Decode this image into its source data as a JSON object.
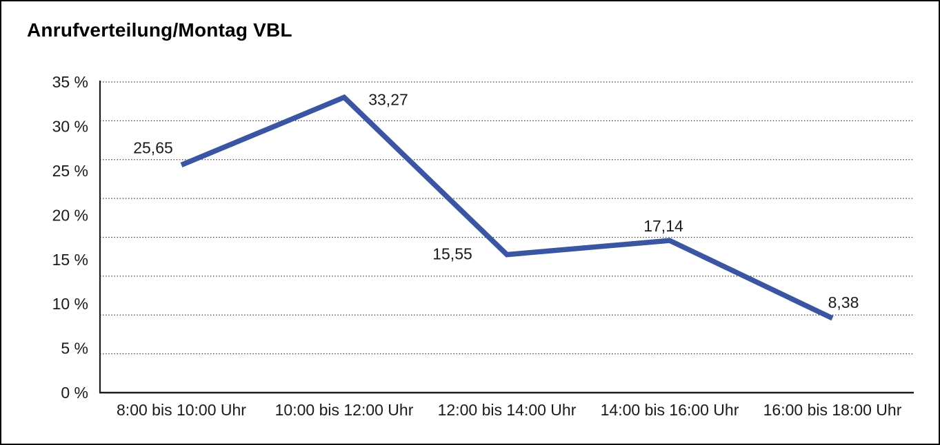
{
  "chart_data": {
    "type": "line",
    "title": "Anrufverteilung/Montag VBL",
    "categories": [
      "8:00 bis 10:00 Uhr",
      "10:00 bis 12:00 Uhr",
      "12:00 bis 14:00 Uhr",
      "14:00 bis 16:00 Uhr",
      "16:00 bis 18:00 Uhr"
    ],
    "values": [
      25.65,
      33.27,
      15.55,
      17.14,
      8.38
    ],
    "value_labels": [
      "25,65",
      "33,27",
      "15,55",
      "17,14",
      "8,38"
    ],
    "y_ticks": [
      "35 %",
      "30 %",
      "25 %",
      "20 %",
      "15 %",
      "10 %",
      "5 %",
      "0 %"
    ],
    "ylim": [
      0,
      35
    ],
    "xlabel": "",
    "ylabel": "",
    "legend": "none",
    "grid": "horizontal dotted lines",
    "grid_intervals": 8,
    "line_color": "#3a56a3",
    "axis_color": "#1a1a1a",
    "gridline_color": "#3c3c3c"
  }
}
